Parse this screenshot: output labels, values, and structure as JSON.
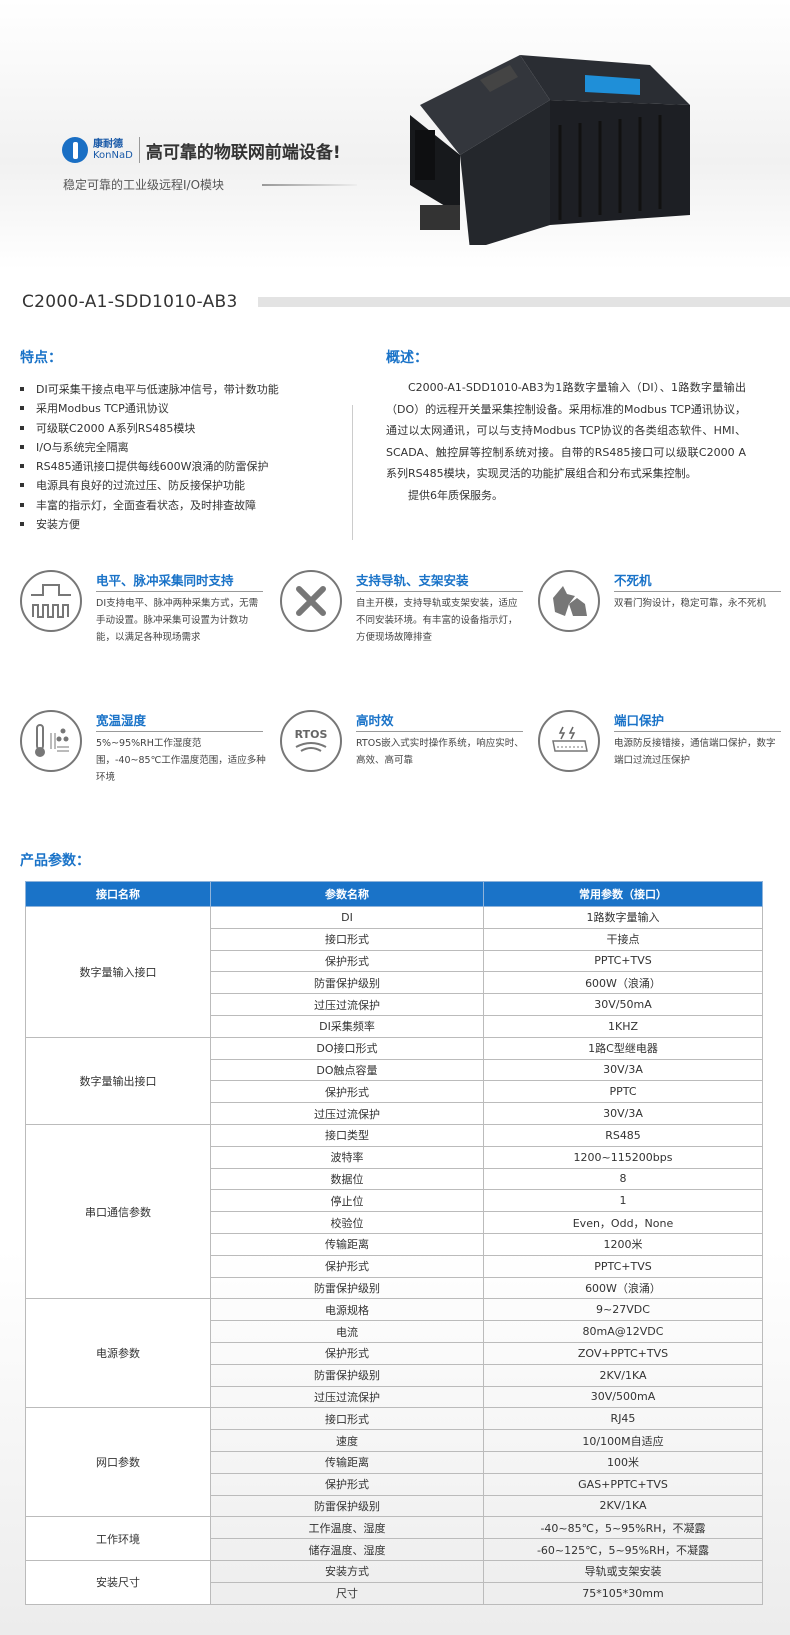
{
  "banner": {
    "brand_cn": "康耐德",
    "brand_en": "KonNaD",
    "slogan": "高可靠的物联网前端设备!",
    "subtitle": "稳定可靠的工业级远程I/O模块"
  },
  "product": {
    "model": "C2000-A1-SDD1010-AB3"
  },
  "features": {
    "heading": "特点：",
    "items": [
      "DI可采集干接点电平与低速脉冲信号，带计数功能",
      "采用Modbus TCP通讯协议",
      "可级联C2000 A系列RS485模块",
      "I/O与系统完全隔离",
      "RS485通讯接口提供每线600W浪涌的防雷保护",
      "电源具有良好的过流过压、防反接保护功能",
      "丰富的指示灯，全面查看状态，及时排查故障",
      "安装方便"
    ]
  },
  "overview": {
    "heading": "概述：",
    "paragraphs": [
      "C2000-A1-SDD1010-AB3为1路数字量输入（DI）、1路数字量输出（DO）的远程开关量采集控制设备。采用标准的Modbus TCP通讯协议，通过以太网通讯，可以与支持Modbus TCP协议的各类组态软件、HMI、SCADA、触控屏等控制系统对接。自带的RS485接口可以级联C2000 A系列RS485模块，实现灵活的功能扩展组合和分布式采集控制。",
      "提供6年质保服务。"
    ]
  },
  "highlights": [
    {
      "icon": "pulse-wave-icon",
      "title": "电平、脉冲采集同时支持",
      "desc": "DI支持电平、脉冲两种采集方式，无需手动设置。脉冲采集可设置为计数功能，以满足各种现场需求"
    },
    {
      "icon": "wrench-screwdriver-icon",
      "title": "支持导轨、支架安装",
      "desc": "自主开模，支持导轨或支架安装，适应不同安装环境。有丰富的设备指示灯，方便现场故障排查"
    },
    {
      "icon": "watchdog-icon",
      "title": "不死机",
      "desc": "双看门狗设计，稳定可靠，永不死机"
    },
    {
      "icon": "thermometer-humidity-icon",
      "title": "宽温湿度",
      "desc": "5%~95%RH工作湿度范围，-40~85℃工作温度范围，适应多种环境"
    },
    {
      "icon": "rtos-icon",
      "icon_text": "RTOS",
      "title": "高时效",
      "desc": "RTOS嵌入式实时操作系统，响应实时、高效、高可靠"
    },
    {
      "icon": "port-protection-icon",
      "title": "端口保护",
      "desc": "电源防反接错接，通信端口保护，数字端口过流过压保护"
    }
  ],
  "params": {
    "heading": "产品参数：",
    "columns": [
      "接口名称",
      "参数名称",
      "常用参数（接口）"
    ],
    "groups": [
      {
        "name": "数字量输入接口",
        "rows": [
          [
            "DI",
            "1路数字量输入"
          ],
          [
            "接口形式",
            "干接点"
          ],
          [
            "保护形式",
            "PPTC+TVS"
          ],
          [
            "防雷保护级别",
            "600W（浪涌）"
          ],
          [
            "过压过流保护",
            "30V/50mA"
          ],
          [
            "DI采集频率",
            "1KHZ"
          ]
        ]
      },
      {
        "name": "数字量输出接口",
        "rows": [
          [
            "DO接口形式",
            "1路C型继电器"
          ],
          [
            "DO触点容量",
            "30V/3A"
          ],
          [
            "保护形式",
            "PPTC"
          ],
          [
            "过压过流保护",
            "30V/3A"
          ]
        ]
      },
      {
        "name": "串口通信参数",
        "rows": [
          [
            "接口类型",
            "RS485"
          ],
          [
            "波特率",
            "1200~115200bps"
          ],
          [
            "数据位",
            "8"
          ],
          [
            "停止位",
            "1"
          ],
          [
            "校验位",
            "Even，Odd，None"
          ],
          [
            "传输距离",
            "1200米"
          ],
          [
            "保护形式",
            "PPTC+TVS"
          ],
          [
            "防雷保护级别",
            "600W（浪涌）"
          ]
        ]
      },
      {
        "name": "电源参数",
        "rows": [
          [
            "电源规格",
            "9~27VDC"
          ],
          [
            "电流",
            "80mA@12VDC"
          ],
          [
            "保护形式",
            "ZOV+PPTC+TVS"
          ],
          [
            "防雷保护级别",
            "2KV/1KA"
          ],
          [
            "过压过流保护",
            "30V/500mA"
          ]
        ]
      },
      {
        "name": "网口参数",
        "rows": [
          [
            "接口形式",
            "RJ45"
          ],
          [
            "速度",
            "10/100M自适应"
          ],
          [
            "传输距离",
            "100米"
          ],
          [
            "保护形式",
            "GAS+PPTC+TVS"
          ],
          [
            "防雷保护级别",
            "2KV/1KA"
          ]
        ]
      },
      {
        "name": "工作环境",
        "rows": [
          [
            "工作温度、湿度",
            "-40~85℃，5~95%RH，不凝露"
          ],
          [
            "储存温度、湿度",
            "-60~125℃，5~95%RH，不凝露"
          ]
        ]
      },
      {
        "name": "安装尺寸",
        "rows": [
          [
            "安装方式",
            "导轨或支架安装"
          ],
          [
            "尺寸",
            "75*105*30mm"
          ]
        ]
      }
    ]
  },
  "colors": {
    "accent": "#1a73c8",
    "header_bg": "#1a73c8"
  }
}
